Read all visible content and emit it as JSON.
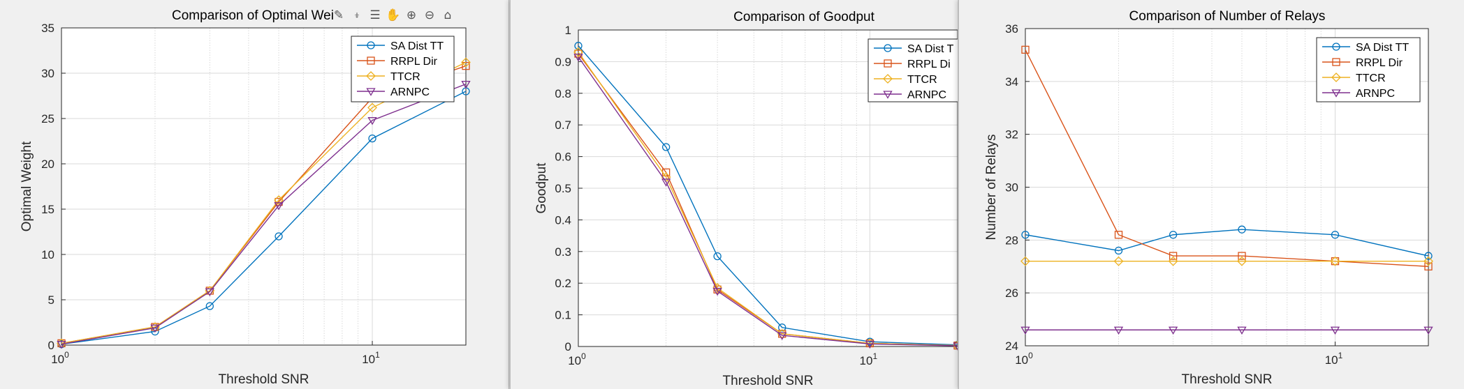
{
  "series_colors": [
    "#0072BD",
    "#D95319",
    "#EDB120",
    "#7E2F8E"
  ],
  "toolbar": {
    "icons": [
      "brush-icon",
      "datatip-icon",
      "legend-icon",
      "pan-icon",
      "zoom-in-icon",
      "zoom-out-icon",
      "home-icon"
    ],
    "glyphs": [
      "✎",
      "⍖",
      "☰",
      "✋",
      "⊕",
      "⊖",
      "⌂"
    ]
  },
  "chart_data": [
    {
      "type": "line",
      "title": "Comparison of Optimal Wei",
      "xlabel": "Threshold SNR",
      "ylabel": "Optimal Weight",
      "xscale": "log",
      "xlim": [
        1,
        20
      ],
      "ylim": [
        0,
        35
      ],
      "xticks": [
        1,
        10
      ],
      "xticklabels": [
        [
          "10",
          "0"
        ],
        [
          "10",
          "1"
        ]
      ],
      "yticks": [
        0,
        5,
        10,
        15,
        20,
        25,
        30,
        35
      ],
      "yticklabels": [
        "0",
        "5",
        "10",
        "15",
        "20",
        "25",
        "30",
        "35"
      ],
      "grid": true,
      "legend": {
        "position": "top-right",
        "entries": [
          "SA Dist TT",
          "RRPL Dir",
          "TTCR",
          "ARNPC"
        ]
      },
      "x": [
        1,
        2,
        3,
        5,
        10,
        20
      ],
      "series": [
        {
          "name": "SA Dist TT",
          "marker": "circle",
          "values": [
            0.1,
            1.5,
            4.3,
            12.0,
            22.8,
            28.0
          ]
        },
        {
          "name": "RRPL Dir",
          "marker": "square",
          "values": [
            0.2,
            2.0,
            6.0,
            15.8,
            27.3,
            30.8
          ]
        },
        {
          "name": "TTCR",
          "marker": "diamond",
          "values": [
            0.2,
            2.0,
            6.0,
            16.0,
            26.2,
            31.2
          ]
        },
        {
          "name": "ARNPC",
          "marker": "triangle-down",
          "values": [
            0.1,
            1.9,
            5.9,
            15.4,
            24.8,
            28.8
          ]
        }
      ]
    },
    {
      "type": "line",
      "title": "Comparison of Goodput",
      "xlabel": "Threshold SNR",
      "ylabel": "Goodput",
      "xscale": "log",
      "xlim": [
        1,
        20
      ],
      "ylim": [
        0,
        1
      ],
      "xticks": [
        1,
        10
      ],
      "xticklabels": [
        [
          "10",
          "0"
        ],
        [
          "10",
          "1"
        ]
      ],
      "yticks": [
        0,
        0.1,
        0.2,
        0.3,
        0.4,
        0.5,
        0.6,
        0.7,
        0.8,
        0.9,
        1
      ],
      "yticklabels": [
        "0",
        "0.1",
        "0.2",
        "0.3",
        "0.4",
        "0.5",
        "0.6",
        "0.7",
        "0.8",
        "0.9",
        "1"
      ],
      "grid": true,
      "legend": {
        "position": "top-right",
        "entries": [
          "SA Dist T",
          "RRPL Di",
          "TTCR",
          "ARNPC"
        ]
      },
      "x": [
        1,
        2,
        3,
        5,
        10,
        20
      ],
      "series": [
        {
          "name": "SA Dist T",
          "marker": "circle",
          "values": [
            0.95,
            0.63,
            0.285,
            0.06,
            0.015,
            0.005
          ]
        },
        {
          "name": "RRPL Di",
          "marker": "square",
          "values": [
            0.925,
            0.55,
            0.18,
            0.04,
            0.01,
            0.003
          ]
        },
        {
          "name": "TTCR",
          "marker": "diamond",
          "values": [
            0.93,
            0.535,
            0.185,
            0.04,
            0.01,
            0.003
          ]
        },
        {
          "name": "ARNPC",
          "marker": "triangle-down",
          "values": [
            0.915,
            0.52,
            0.175,
            0.035,
            0.008,
            0.002
          ]
        }
      ]
    },
    {
      "type": "line",
      "title": "Comparison of Number of Relays",
      "xlabel": "Threshold SNR",
      "ylabel": "Number of Relays",
      "xscale": "log",
      "xlim": [
        1,
        20
      ],
      "ylim": [
        24,
        36
      ],
      "xticks": [
        1,
        10
      ],
      "xticklabels": [
        [
          "10",
          "0"
        ],
        [
          "10",
          "1"
        ]
      ],
      "yticks": [
        24,
        26,
        28,
        30,
        32,
        34,
        36
      ],
      "yticklabels": [
        "24",
        "26",
        "28",
        "30",
        "32",
        "34",
        "36"
      ],
      "grid": true,
      "legend": {
        "position": "top-right",
        "entries": [
          "SA Dist TT",
          "RRPL Dir",
          "TTCR",
          "ARNPC"
        ]
      },
      "x": [
        1,
        2,
        3,
        5,
        10,
        20
      ],
      "series": [
        {
          "name": "SA Dist TT",
          "marker": "circle",
          "values": [
            28.2,
            27.6,
            28.2,
            28.4,
            28.2,
            27.4
          ]
        },
        {
          "name": "RRPL Dir",
          "marker": "square",
          "values": [
            35.2,
            28.2,
            27.4,
            27.4,
            27.2,
            27.0
          ]
        },
        {
          "name": "TTCR",
          "marker": "diamond",
          "values": [
            27.2,
            27.2,
            27.2,
            27.2,
            27.2,
            27.2
          ]
        },
        {
          "name": "ARNPC",
          "marker": "triangle-down",
          "values": [
            24.6,
            24.6,
            24.6,
            24.6,
            24.6,
            24.6
          ]
        }
      ]
    }
  ]
}
